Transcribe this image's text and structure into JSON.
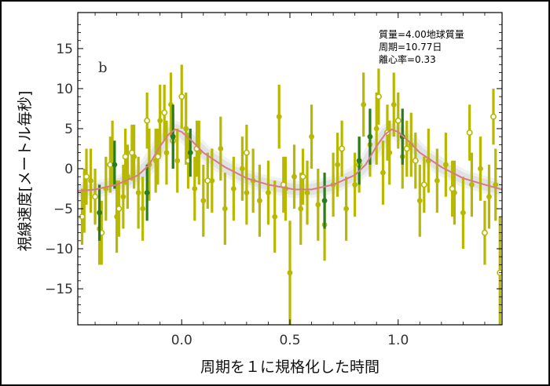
{
  "chart_data": {
    "type": "scatter",
    "panel_label": "b",
    "xlabel": "周期を１に規格化した時間",
    "ylabel": "視線速度[メートル毎秒]",
    "xlim": [
      -0.48,
      1.48
    ],
    "ylim": [
      -19.5,
      19.5
    ],
    "xticks": [
      0.0,
      0.5,
      1.0
    ],
    "xtick_labels": [
      "0.0",
      "0.5",
      "1.0"
    ],
    "yticks": [
      15,
      10,
      5,
      0,
      -5,
      -10,
      -15
    ],
    "ytick_labels": [
      "15",
      "10",
      "5",
      "0",
      "−5",
      "−10",
      "−15"
    ],
    "annotations": [
      "質量=4.00地球質量",
      "周期=10.77日",
      "離心率=0.33"
    ],
    "grid": false,
    "colors": {
      "dataset_a": "#b8b800",
      "dataset_b": "#2a7d1e",
      "model": "#d97a86",
      "model_band": "#c9ccce",
      "frame": "#000000"
    },
    "model_curve": {
      "x": [
        -0.48,
        -0.4,
        -0.3,
        -0.2,
        -0.15,
        -0.1,
        -0.06,
        -0.03,
        0.0,
        0.05,
        0.1,
        0.2,
        0.3,
        0.4,
        0.52,
        0.6,
        0.7,
        0.8,
        0.85,
        0.9,
        0.94,
        0.97,
        1.0,
        1.05,
        1.1,
        1.2,
        1.3,
        1.4,
        1.48
      ],
      "y": [
        -2.8,
        -2.6,
        -2.0,
        -0.8,
        0.5,
        2.8,
        4.3,
        4.9,
        4.6,
        3.4,
        2.0,
        0.2,
        -1.2,
        -2.0,
        -2.6,
        -2.6,
        -2.0,
        -0.8,
        0.5,
        2.8,
        4.3,
        4.9,
        4.6,
        3.4,
        2.0,
        0.2,
        -1.2,
        -2.0,
        -2.6
      ]
    },
    "series": [
      {
        "marker": "filled",
        "x": [
          -0.45,
          -0.42,
          -0.38,
          -0.35,
          -0.32,
          -0.3,
          -0.27,
          -0.25,
          -0.22,
          -0.2,
          -0.18,
          -0.15,
          -0.12,
          -0.1,
          -0.07,
          -0.05,
          -0.02,
          0.02,
          0.06,
          0.08,
          0.1,
          0.14,
          0.18,
          0.2,
          0.24,
          0.28,
          0.3,
          0.33,
          0.36,
          0.4,
          0.43,
          0.45,
          0.48,
          0.5,
          0.52,
          0.55,
          0.58,
          0.6,
          0.63,
          0.66,
          0.7,
          0.72,
          0.76,
          0.8,
          0.84,
          0.87,
          0.9,
          0.93,
          0.96,
          0.98,
          1.02,
          1.06,
          1.1,
          1.14,
          1.18,
          1.22,
          1.26,
          1.3,
          1.34,
          1.38,
          1.42,
          1.45
        ],
        "y": [
          -4.0,
          -1.5,
          -7.5,
          -2.5,
          2.0,
          -6.0,
          -3.5,
          -1.0,
          1.5,
          -3.0,
          -5.0,
          0.5,
          1.0,
          6.0,
          2.0,
          8.0,
          1.0,
          5.0,
          -2.5,
          2.0,
          -4.0,
          -1.5,
          2.5,
          -5.0,
          -2.5,
          0.0,
          -3.0,
          -1.5,
          -4.0,
          -3.0,
          -6.0,
          6.5,
          -2.5,
          -13.0,
          -1.0,
          -5.0,
          -3.0,
          4.0,
          -4.5,
          -7.0,
          -2.0,
          0.5,
          -5.0,
          -2.0,
          8.0,
          3.0,
          5.0,
          -0.5,
          2.0,
          8.0,
          1.5,
          3.0,
          -4.0,
          1.0,
          -1.5,
          0.5,
          -3.0,
          -5.5,
          -2.0,
          0.0,
          -3.5,
          -2.0
        ],
        "err": [
          4.0,
          4.0,
          4.5,
          4.0,
          4.0,
          4.5,
          4.0,
          4.0,
          4.0,
          4.5,
          4.0,
          4.5,
          4.0,
          4.5,
          4.0,
          4.0,
          4.0,
          4.5,
          4.0,
          4.0,
          4.5,
          4.0,
          4.0,
          4.5,
          4.0,
          4.0,
          4.0,
          4.0,
          4.5,
          4.0,
          4.5,
          4.0,
          4.0,
          6.5,
          4.0,
          4.5,
          4.0,
          4.0,
          4.5,
          4.5,
          4.0,
          4.0,
          4.0,
          4.0,
          4.0,
          4.0,
          4.5,
          4.0,
          4.0,
          4.0,
          4.0,
          4.0,
          4.5,
          4.0,
          4.0,
          4.0,
          4.0,
          4.5,
          4.0,
          4.0,
          4.0,
          4.5
        ]
      },
      {
        "marker": "open",
        "x": [
          -0.46,
          -0.44,
          -0.4,
          -0.37,
          -0.33,
          -0.29,
          -0.26,
          -0.23,
          -0.16,
          -0.11,
          -0.08,
          -0.04,
          0.0,
          0.03,
          0.07,
          0.12,
          0.3,
          0.47,
          0.56,
          0.74,
          0.82,
          0.91,
          0.95,
          1.0,
          1.04,
          1.08,
          1.12,
          1.25,
          1.33,
          1.4,
          1.44,
          1.47
        ],
        "y": [
          -6.0,
          -1.0,
          -3.5,
          -8.0,
          0.5,
          -5.0,
          1.5,
          2.0,
          6.0,
          1.5,
          7.0,
          3.5,
          9.0,
          1.0,
          2.5,
          -1.5,
          2.0,
          -2.0,
          -1.0,
          2.5,
          0.5,
          9.0,
          4.5,
          6.0,
          2.5,
          1.0,
          -2.0,
          -2.5,
          4.5,
          -8.0,
          6.5,
          -13.0
        ],
        "err": [
          3.5,
          3.5,
          3.5,
          4.0,
          3.5,
          3.5,
          3.5,
          3.5,
          3.5,
          3.5,
          3.5,
          3.5,
          4.0,
          3.5,
          3.5,
          3.5,
          3.5,
          3.5,
          3.5,
          3.5,
          3.5,
          3.5,
          3.5,
          3.5,
          3.5,
          3.5,
          3.5,
          3.5,
          3.5,
          4.0,
          3.5,
          7.0
        ]
      },
      {
        "marker": "filled-green",
        "x": [
          -0.38,
          -0.31,
          -0.16,
          -0.04,
          0.04,
          0.66,
          0.82,
          0.87,
          1.02
        ],
        "y": [
          -5.5,
          0.5,
          -3.0,
          4.0,
          2.0,
          -4.0,
          1.0,
          4.0,
          4.0
        ],
        "err": [
          3.5,
          3.0,
          3.5,
          4.0,
          3.0,
          3.5,
          3.0,
          3.5,
          3.5
        ]
      }
    ]
  }
}
